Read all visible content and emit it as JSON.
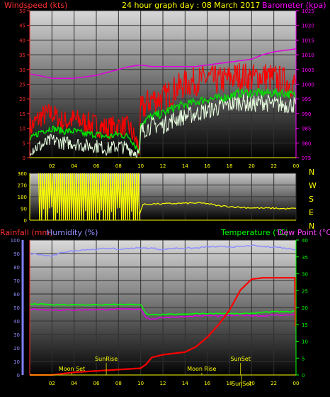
{
  "header": {
    "left_label": "Windspeed (kts)",
    "center_label": "24 hour graph day : 08 March 2017",
    "right_label": "Barometer (kpa)"
  },
  "colors": {
    "wind_axis": "#ff3030",
    "baro_axis": "#ff00ff",
    "title": "#ffff00",
    "gust": "#ff0000",
    "avg": "#00e000",
    "speed": "#e8ffe0",
    "baro": "#e000e0",
    "direction": "#ffff00",
    "rain": "#ff0000",
    "humidity": "#9090ff",
    "temperature": "#00ff00",
    "dewpoint": "#e000e0",
    "temp_axis": "#00ff00"
  },
  "chart_data": [
    {
      "type": "line",
      "name": "wind-barometer",
      "title": "24 hour graph day : 08 March 2017",
      "ylabel": "Windspeed (kts)",
      "y2label": "Barometer (kpa)",
      "ylim": [
        0,
        50
      ],
      "y_ticks": [
        "0",
        "5",
        "10",
        "15",
        "20",
        "25",
        "30",
        "35",
        "40",
        "45",
        "50"
      ],
      "y2lim": [
        975,
        1025
      ],
      "y2_ticks": [
        "975",
        "980",
        "985",
        "990",
        "995",
        "1000",
        "1005",
        "1010",
        "1015",
        "1020",
        "1025"
      ],
      "x_ticks": [
        "02",
        "04",
        "06",
        "08",
        "10",
        "12",
        "14",
        "16",
        "18",
        "20",
        "22",
        "00"
      ],
      "xlim": [
        0,
        24
      ],
      "series": [
        {
          "key": "gust",
          "x": [
            0,
            1,
            2,
            3,
            4,
            5,
            6,
            7,
            8,
            9,
            9.9,
            10,
            11,
            12,
            13,
            14,
            15,
            16,
            17,
            18,
            19,
            20,
            21,
            22,
            23,
            24
          ],
          "values": [
            10,
            14,
            15,
            12,
            13,
            12,
            11,
            10,
            11,
            10,
            3,
            16,
            20,
            20,
            23,
            25,
            26,
            27,
            26,
            27,
            28,
            27,
            28,
            27,
            26,
            25
          ]
        },
        {
          "key": "avg",
          "x": [
            0,
            1,
            2,
            3,
            4,
            5,
            6,
            7,
            8,
            9,
            9.9,
            10,
            11,
            12,
            13,
            14,
            15,
            16,
            17,
            18,
            19,
            20,
            21,
            22,
            23,
            24
          ],
          "values": [
            6,
            9,
            10,
            9,
            9,
            8,
            8,
            7,
            8,
            7,
            2,
            12,
            14,
            15,
            17,
            18,
            19,
            20,
            20,
            21,
            22,
            22,
            22,
            22,
            22,
            21
          ]
        },
        {
          "key": "speed",
          "x": [
            0,
            1,
            2,
            3,
            4,
            5,
            6,
            7,
            8,
            9,
            9.9,
            10,
            11,
            12,
            13,
            14,
            15,
            16,
            17,
            18,
            19,
            20,
            21,
            22,
            23,
            24
          ],
          "values": [
            3,
            4,
            6,
            5,
            5,
            4,
            4,
            3,
            4,
            3,
            1,
            9,
            11,
            11,
            13,
            14,
            15,
            16,
            17,
            18,
            19,
            18,
            19,
            18,
            18,
            18
          ]
        },
        {
          "key": "baro",
          "x": [
            0,
            1,
            2,
            3,
            4,
            5,
            6,
            7,
            8,
            9,
            10,
            11,
            12,
            13,
            14,
            15,
            16,
            17,
            18,
            19,
            20,
            21,
            22,
            23,
            24
          ],
          "values": [
            1003.5,
            1002.8,
            1002,
            1002,
            1002,
            1002.5,
            1003,
            1004,
            1005,
            1006,
            1006.5,
            1006,
            1006,
            1006,
            1006,
            1006,
            1006.5,
            1007,
            1007.5,
            1008,
            1008.5,
            1010,
            1011,
            1011.5,
            1012
          ]
        }
      ]
    },
    {
      "type": "line",
      "name": "wind-direction",
      "ylim": [
        0,
        360
      ],
      "y_ticks": [
        "0",
        "90",
        "180",
        "270",
        "360"
      ],
      "compass": [
        "N",
        "W",
        "S",
        "E",
        "N"
      ],
      "x": [
        0,
        1,
        2,
        3,
        4,
        5,
        6,
        7,
        8,
        9,
        9.9,
        10.2,
        11,
        12,
        13,
        14,
        15,
        16,
        17,
        18,
        19,
        20,
        21,
        22,
        23,
        24
      ],
      "values": [
        0,
        360,
        0,
        360,
        0,
        360,
        0,
        360,
        0,
        360,
        50,
        120,
        125,
        125,
        128,
        130,
        132,
        128,
        110,
        105,
        98,
        95,
        92,
        92,
        88,
        90
      ]
    },
    {
      "type": "line",
      "name": "rain-humidity-temperature",
      "labels": {
        "rain": "Rainfall (mm)",
        "humidity": "Humidity (%)",
        "temperature": "Temperature (°C)",
        "dewpoint": "Dew Point (°C)"
      },
      "ylim": [
        0,
        100
      ],
      "y_ticks": [
        "0",
        "10",
        "20",
        "30",
        "40",
        "50",
        "60",
        "70",
        "80",
        "90",
        "100"
      ],
      "y2lim": [
        0,
        40
      ],
      "y2_ticks": [
        "0",
        "5",
        "10",
        "15",
        "20",
        "25",
        "30",
        "35",
        "40"
      ],
      "x_ticks": [
        "02",
        "04",
        "06",
        "08",
        "10",
        "12",
        "14",
        "16",
        "18",
        "20",
        "22",
        "00"
      ],
      "series": [
        {
          "key": "humidity",
          "x": [
            0,
            1,
            2,
            3,
            4,
            5,
            6,
            7,
            8,
            9,
            10,
            11,
            12,
            13,
            14,
            15,
            16,
            17,
            18,
            19,
            20,
            21,
            22,
            23,
            24
          ],
          "values": [
            90,
            89,
            88,
            91,
            92,
            93,
            93,
            94,
            93,
            94,
            94,
            94,
            93,
            94,
            94,
            94,
            95,
            95,
            95,
            95,
            96,
            95,
            95,
            94,
            93
          ]
        },
        {
          "key": "temperature",
          "x": [
            0,
            1,
            2,
            3,
            4,
            5,
            6,
            7,
            8,
            9,
            10,
            10.5,
            11,
            12,
            13,
            14,
            15,
            16,
            17,
            18,
            19,
            20,
            21,
            22,
            23,
            24
          ],
          "values": [
            21,
            21,
            20.8,
            20.8,
            20.8,
            20.8,
            20.8,
            20.8,
            20.9,
            20.9,
            20.9,
            18,
            17.8,
            17.9,
            18,
            18,
            18.2,
            18.2,
            18.3,
            18.2,
            18.1,
            18.3,
            18.5,
            18.8,
            18.7,
            18.9
          ]
        },
        {
          "key": "dewpoint",
          "x": [
            0,
            1,
            2,
            3,
            4,
            5,
            6,
            7,
            8,
            9,
            10,
            10.5,
            11,
            12,
            13,
            14,
            15,
            16,
            17,
            18,
            19,
            20,
            21,
            22,
            23,
            24
          ],
          "values": [
            19.5,
            19.4,
            19.3,
            19.2,
            19.3,
            19.3,
            19.4,
            19.4,
            19.5,
            19.5,
            19.6,
            17,
            16.5,
            17,
            17.2,
            17.3,
            17.5,
            17.6,
            17.5,
            17.6,
            17.7,
            17.6,
            17.5,
            17.8,
            17.7,
            18
          ]
        },
        {
          "key": "rain",
          "x": [
            0,
            1,
            2,
            3,
            4,
            5,
            6,
            7,
            8,
            9,
            10,
            10.5,
            11,
            12,
            13,
            14,
            15,
            16,
            17,
            18,
            19,
            20,
            21,
            22,
            23,
            23.9,
            24
          ],
          "values": [
            0,
            0,
            0,
            1,
            2,
            2.5,
            3,
            3.5,
            4,
            4.5,
            5,
            8,
            13,
            15,
            16,
            17,
            21,
            28,
            37,
            48,
            63,
            71,
            72,
            72,
            72,
            72,
            0
          ]
        }
      ],
      "events": [
        {
          "label": "Moon Set",
          "x": 3.8
        },
        {
          "label": "SunRise",
          "x": 6.9
        },
        {
          "label": "Moon Rise",
          "x": 15.5
        },
        {
          "label": "SunSet",
          "x": 19
        },
        {
          "label": "SunSet",
          "x": 19.1
        }
      ]
    }
  ]
}
